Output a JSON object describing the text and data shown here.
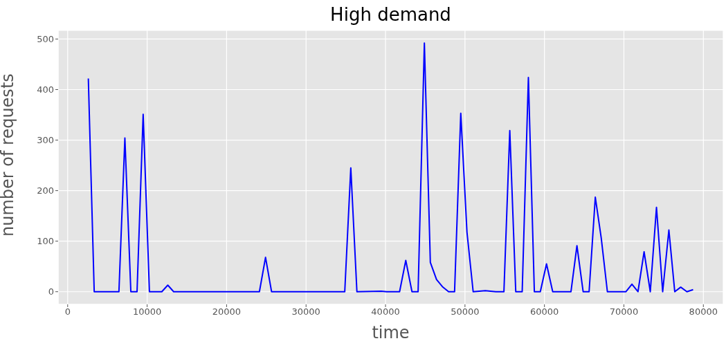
{
  "chart_data": {
    "type": "line",
    "title": "High demand",
    "xlabel": "time",
    "ylabel": "number of requests",
    "x": [
      2600,
      3340,
      6450,
      7200,
      7950,
      8730,
      9500,
      10290,
      11850,
      12600,
      13340,
      24130,
      24900,
      25660,
      34870,
      35630,
      36400,
      39470,
      40130,
      41770,
      42550,
      43330,
      44100,
      44890,
      45640,
      46420,
      47160,
      47940,
      48690,
      49470,
      50250,
      51030,
      52560,
      53880,
      54900,
      55640,
      56390,
      57200,
      57980,
      58730,
      59480,
      60260,
      61040,
      63340,
      64090,
      64870,
      65620,
      66400,
      67150,
      67920,
      70260,
      71010,
      71770,
      72540,
      73320,
      74100,
      74880,
      75660,
      76400,
      77150,
      77930,
      78710
    ],
    "series": [
      {
        "color": "#0000ff",
        "values": [
          422,
          0,
          0,
          304,
          0,
          0,
          351,
          0,
          0,
          13,
          0,
          0,
          68,
          0,
          0,
          245,
          0,
          1,
          0,
          0,
          62,
          0,
          0,
          492,
          58,
          24,
          10,
          0,
          0,
          353,
          118,
          0,
          2,
          0,
          0,
          319,
          0,
          0,
          424,
          0,
          0,
          55,
          0,
          0,
          91,
          0,
          0,
          187,
          106,
          0,
          0,
          15,
          0,
          79,
          0,
          167,
          0,
          122,
          0,
          9,
          0,
          4
        ]
      }
    ],
    "xlim": [
      -1200,
      82500
    ],
    "xticks": [
      0,
      10000,
      20000,
      30000,
      40000,
      50000,
      60000,
      70000,
      80000
    ],
    "ylim": [
      -25,
      517
    ],
    "yticks": [
      0,
      100,
      200,
      300,
      400,
      500
    ],
    "grid": true,
    "marker": "none",
    "line_style": "solid",
    "legend": false
  }
}
